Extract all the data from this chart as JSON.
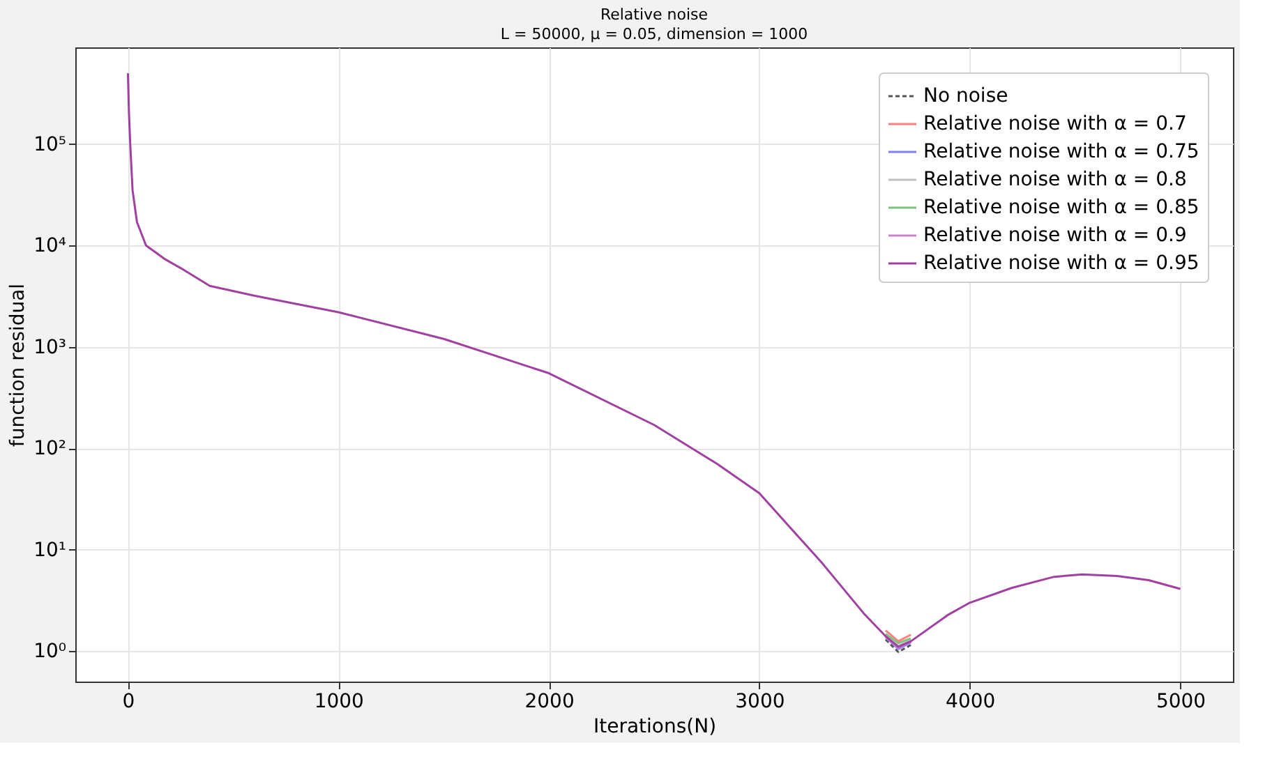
{
  "chart_data": {
    "type": "line",
    "title": "Relative noise",
    "subtitle": "L = 50000, μ = 0.05, dimension = 1000",
    "xlabel": "Iterations(N)",
    "ylabel": "function residual",
    "x": [
      0,
      5,
      11,
      22,
      43,
      86,
      173,
      250,
      389,
      600,
      1000,
      1500,
      2000,
      2500,
      2800,
      3000,
      3300,
      3500,
      3600,
      3660,
      3720,
      3900,
      4000,
      4200,
      4400,
      4534,
      4700,
      4850,
      5000
    ],
    "series": [
      {
        "name": "No noise",
        "color": "#555555",
        "line_style": "dashed",
        "values": [
          null,
          null,
          null,
          null,
          null,
          null,
          null,
          null,
          null,
          null,
          null,
          null,
          null,
          null,
          null,
          null,
          null,
          null,
          1.3,
          0.98,
          1.15,
          null,
          null,
          null,
          null,
          null,
          null,
          null,
          null
        ]
      },
      {
        "name": "Relative noise with α = 0.7",
        "color": "#ff8080",
        "line_style": "solid",
        "values": [
          null,
          null,
          null,
          null,
          null,
          null,
          null,
          null,
          null,
          null,
          null,
          null,
          null,
          null,
          null,
          null,
          null,
          null,
          1.6,
          1.25,
          1.45,
          null,
          null,
          null,
          null,
          null,
          null,
          null,
          null
        ]
      },
      {
        "name": "Relative noise with α = 0.75",
        "color": "#8080ff",
        "line_style": "solid",
        "values": [
          null,
          null,
          null,
          null,
          null,
          null,
          null,
          null,
          null,
          null,
          null,
          null,
          null,
          null,
          null,
          null,
          null,
          null,
          1.38,
          1.05,
          1.22,
          null,
          null,
          null,
          null,
          null,
          null,
          null,
          null
        ]
      },
      {
        "name": "Relative noise with α = 0.8",
        "color": "#c0c0c0",
        "line_style": "solid",
        "values": [
          null,
          null,
          null,
          null,
          null,
          null,
          null,
          null,
          null,
          null,
          null,
          null,
          null,
          null,
          null,
          null,
          null,
          null,
          1.42,
          1.13,
          1.28,
          null,
          null,
          null,
          null,
          null,
          null,
          null,
          null
        ]
      },
      {
        "name": "Relative noise with α = 0.85",
        "color": "#80c080",
        "line_style": "solid",
        "values": [
          null,
          null,
          null,
          null,
          null,
          null,
          null,
          null,
          null,
          null,
          null,
          null,
          null,
          null,
          null,
          null,
          null,
          null,
          1.48,
          1.2,
          1.33,
          null,
          null,
          null,
          null,
          null,
          null,
          null,
          null
        ]
      },
      {
        "name": "Relative noise with α = 0.9",
        "color": "#d080d0",
        "line_style": "solid",
        "values": [
          null,
          null,
          null,
          null,
          null,
          null,
          null,
          null,
          null,
          null,
          null,
          null,
          null,
          null,
          null,
          null,
          null,
          null,
          1.36,
          1.08,
          1.24,
          null,
          null,
          null,
          null,
          null,
          null,
          null,
          null
        ]
      },
      {
        "name": "Relative noise with α = 0.95",
        "color": "#a040a0",
        "line_style": "solid",
        "values": [
          500000,
          200000,
          100000,
          35000,
          17000,
          10000,
          7400,
          6000,
          4000,
          3200,
          2200,
          1200,
          550,
          170,
          70,
          36,
          7.3,
          2.3,
          1.4,
          1.1,
          1.25,
          2.3,
          3.0,
          4.2,
          5.4,
          5.7,
          5.5,
          5.0,
          4.1
        ]
      }
    ],
    "xlim": [
      -250,
      5250
    ],
    "xticks": [
      0,
      1000,
      2000,
      3000,
      4000,
      5000
    ],
    "ylim": [
      0.5,
      900000
    ],
    "log": "y",
    "yticks": [
      {
        "value": 1,
        "label": "10⁰"
      },
      {
        "value": 10,
        "label": "10¹"
      },
      {
        "value": 100,
        "label": "10²"
      },
      {
        "value": 1000,
        "label": "10³"
      },
      {
        "value": 10000,
        "label": "10⁴"
      },
      {
        "value": 100000,
        "label": "10⁵"
      }
    ],
    "grid": true,
    "legend": "top right"
  }
}
